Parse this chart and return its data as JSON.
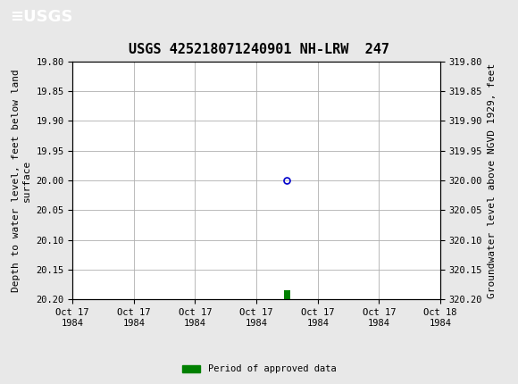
{
  "title": "USGS 425218071240901 NH-LRW  247",
  "title_fontsize": 11,
  "header_color": "#1a6b3c",
  "bg_color": "#e8e8e8",
  "plot_bg_color": "#ffffff",
  "grid_color": "#b0b0b0",
  "ylabel_left": "Depth to water level, feet below land\nsurface",
  "ylabel_right": "Groundwater level above NGVD 1929, feet",
  "ylim_left": [
    19.8,
    20.2
  ],
  "ylim_right": [
    320.2,
    319.8
  ],
  "y_ticks_left": [
    19.8,
    19.85,
    19.9,
    19.95,
    20.0,
    20.05,
    20.1,
    20.15,
    20.2
  ],
  "y_ticks_right": [
    320.2,
    320.15,
    320.1,
    320.05,
    320.0,
    319.95,
    319.9,
    319.85,
    319.8
  ],
  "x_tick_labels": [
    "Oct 17\n1984",
    "Oct 17\n1984",
    "Oct 17\n1984",
    "Oct 17\n1984",
    "Oct 17\n1984",
    "Oct 17\n1984",
    "Oct 18\n1984"
  ],
  "data_point_x": 3.5,
  "data_point_y": 20.0,
  "data_point_color": "#0000cc",
  "data_point_marker": "o",
  "data_point_markersize": 5,
  "bar_x": 3.5,
  "bar_y_bottom": 20.185,
  "bar_color": "#008000",
  "bar_width": 0.1,
  "bar_height": 0.018,
  "legend_label": "Period of approved data",
  "legend_color": "#008000",
  "font_family": "monospace",
  "tick_fontsize": 7.5,
  "label_fontsize": 8,
  "title_font_size": 11,
  "x_min": 0,
  "x_max": 6
}
